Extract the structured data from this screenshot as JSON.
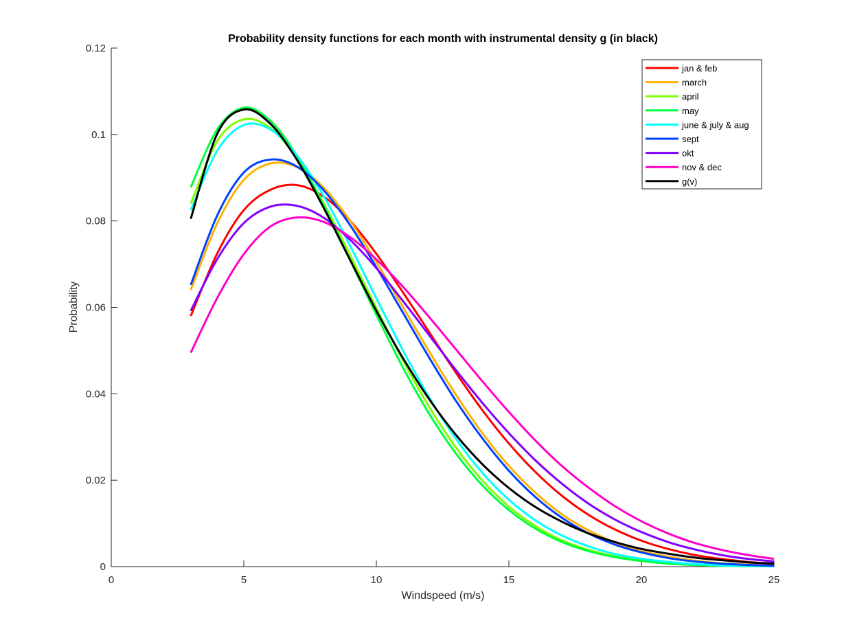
{
  "chart_data": {
    "type": "line",
    "title": "Probability density functions for each month with instrumental density g (in black)",
    "xlabel": "Windspeed (m/s)",
    "ylabel": "Probability",
    "xlim": [
      0,
      25
    ],
    "ylim": [
      0,
      0.12
    ],
    "xticks": [
      0,
      5,
      10,
      15,
      20,
      25
    ],
    "xtick_labels": [
      "0",
      "5",
      "10",
      "15",
      "20",
      "25"
    ],
    "yticks": [
      0,
      0.02,
      0.04,
      0.06,
      0.08,
      0.1,
      0.12
    ],
    "ytick_labels": [
      "0",
      "0.02",
      "0.04",
      "0.06",
      "0.08",
      "0.1",
      "0.12"
    ],
    "grid": false,
    "legend_position": "top-right",
    "series": [
      {
        "name": "jan & feb",
        "color": "#ff0000",
        "x": [
          3,
          4,
          5,
          6,
          7,
          8,
          9,
          10,
          11,
          12,
          13,
          14,
          15,
          16,
          17,
          18,
          19,
          20,
          21,
          22,
          23,
          24,
          25
        ],
        "y": [
          0.058,
          0.0725,
          0.0825,
          0.0872,
          0.0883,
          0.0857,
          0.0801,
          0.0724,
          0.0635,
          0.0542,
          0.0449,
          0.0362,
          0.0285,
          0.0219,
          0.0164,
          0.012,
          0.0086,
          0.006,
          0.0041,
          0.0027,
          0.0018,
          0.0011,
          0.0007
        ]
      },
      {
        "name": "march",
        "color": "#ffb000",
        "x": [
          3,
          4,
          5,
          6,
          7,
          8,
          9,
          10,
          11,
          12,
          13,
          14,
          15,
          16,
          17,
          18,
          19,
          20,
          21,
          22,
          23,
          24,
          25
        ],
        "y": [
          0.064,
          0.0795,
          0.0895,
          0.0933,
          0.0925,
          0.0878,
          0.0801,
          0.0705,
          0.0601,
          0.0497,
          0.0398,
          0.0309,
          0.0233,
          0.0171,
          0.0121,
          0.0084,
          0.0056,
          0.0036,
          0.0023,
          0.0014,
          0.0008,
          0.0005,
          0.0003
        ]
      },
      {
        "name": "april",
        "color": "#7fff00",
        "x": [
          3,
          4,
          5,
          6,
          7,
          8,
          9,
          10,
          11,
          12,
          13,
          14,
          15,
          16,
          17,
          18,
          19,
          20,
          21,
          22,
          23,
          24,
          25
        ],
        "y": [
          0.084,
          0.0985,
          0.1035,
          0.1015,
          0.0945,
          0.0842,
          0.0722,
          0.0598,
          0.0478,
          0.0369,
          0.0276,
          0.0199,
          0.0139,
          0.0094,
          0.0061,
          0.0039,
          0.0024,
          0.0014,
          0.0008,
          0.0004,
          0.0002,
          0.0001,
          0.0001
        ]
      },
      {
        "name": "may",
        "color": "#00ff40",
        "x": [
          3,
          4,
          5,
          6,
          7,
          8,
          9,
          10,
          11,
          12,
          13,
          14,
          15,
          16,
          17,
          18,
          19,
          20,
          21,
          22,
          23,
          24,
          25
        ],
        "y": [
          0.0878,
          0.1012,
          0.1062,
          0.1032,
          0.0951,
          0.0838,
          0.0711,
          0.0583,
          0.0461,
          0.0353,
          0.0262,
          0.0188,
          0.0131,
          0.0088,
          0.0057,
          0.0036,
          0.0022,
          0.0013,
          0.0007,
          0.0004,
          0.0002,
          0.0001,
          0.0001
        ]
      },
      {
        "name": "june & july & aug",
        "color": "#00ffff",
        "x": [
          3,
          4,
          5,
          6,
          7,
          8,
          9,
          10,
          11,
          12,
          13,
          14,
          15,
          16,
          17,
          18,
          19,
          20,
          21,
          22,
          23,
          24,
          25
        ],
        "y": [
          0.0825,
          0.0963,
          0.1022,
          0.1012,
          0.0952,
          0.0859,
          0.0744,
          0.0621,
          0.0501,
          0.0391,
          0.0296,
          0.0217,
          0.0155,
          0.0107,
          0.0072,
          0.0047,
          0.0029,
          0.0018,
          0.0011,
          0.0006,
          0.0003,
          0.0002,
          0.0001
        ]
      },
      {
        "name": "sept",
        "color": "#0040ff",
        "x": [
          3,
          4,
          5,
          6,
          7,
          8,
          9,
          10,
          11,
          12,
          13,
          14,
          15,
          16,
          17,
          18,
          19,
          20,
          21,
          22,
          23,
          24,
          25
        ],
        "y": [
          0.0652,
          0.0813,
          0.0912,
          0.0942,
          0.0926,
          0.0872,
          0.0791,
          0.0693,
          0.0588,
          0.0483,
          0.0384,
          0.0297,
          0.0222,
          0.0161,
          0.0113,
          0.0077,
          0.0051,
          0.0033,
          0.002,
          0.0012,
          0.0007,
          0.0004,
          0.0002
        ]
      },
      {
        "name": "okt",
        "color": "#8000ff",
        "x": [
          3,
          4,
          5,
          6,
          7,
          8,
          9,
          10,
          11,
          12,
          13,
          14,
          15,
          16,
          17,
          18,
          19,
          20,
          21,
          22,
          23,
          24,
          25
        ],
        "y": [
          0.0592,
          0.0712,
          0.0795,
          0.0833,
          0.0835,
          0.0808,
          0.0757,
          0.0691,
          0.0615,
          0.0535,
          0.0455,
          0.0379,
          0.0309,
          0.0246,
          0.0192,
          0.0146,
          0.0109,
          0.008,
          0.0057,
          0.004,
          0.0027,
          0.0018,
          0.0012
        ]
      },
      {
        "name": "nov & dec",
        "color": "#ff00c8",
        "x": [
          3,
          4,
          5,
          6,
          7,
          8,
          9,
          10,
          11,
          12,
          13,
          14,
          15,
          16,
          17,
          18,
          19,
          20,
          21,
          22,
          23,
          24,
          25
        ],
        "y": [
          0.0495,
          0.0622,
          0.0723,
          0.0787,
          0.0808,
          0.0798,
          0.0763,
          0.0711,
          0.0648,
          0.0577,
          0.0503,
          0.0429,
          0.0358,
          0.0292,
          0.0233,
          0.0183,
          0.014,
          0.0105,
          0.0077,
          0.0055,
          0.0039,
          0.0027,
          0.0018
        ]
      },
      {
        "name": "g(v)",
        "color": "#000000",
        "x": [
          3,
          4,
          5,
          6,
          7,
          8,
          9,
          10,
          11,
          12,
          13,
          14,
          15,
          16,
          17,
          18,
          19,
          20,
          21,
          22,
          23,
          24,
          25
        ],
        "y": [
          0.0805,
          0.1002,
          0.1058,
          0.1025,
          0.0942,
          0.0832,
          0.0711,
          0.0592,
          0.0483,
          0.0387,
          0.0305,
          0.0237,
          0.0182,
          0.0138,
          0.0104,
          0.0077,
          0.0057,
          0.0041,
          0.003,
          0.0021,
          0.0015,
          0.001,
          0.0007
        ]
      }
    ]
  }
}
